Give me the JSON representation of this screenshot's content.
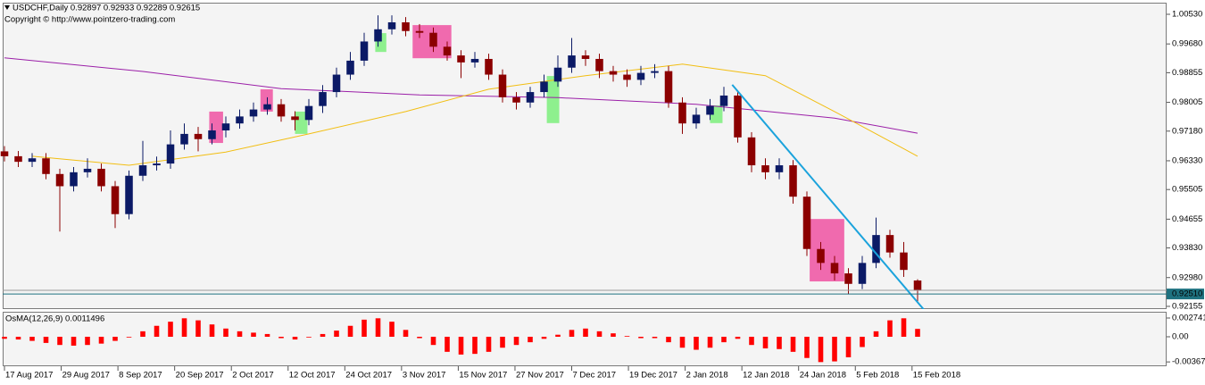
{
  "chart_data": [
    {
      "type": "candlestick",
      "title": "USDCHF,Daily  0.92897 0.92933 0.92289 0.92615",
      "subtitle": "Copyright © http://www.pointzero-trading.com",
      "up_color": "#0b1a66",
      "down_color": "#8b0000",
      "open": [
        0.966,
        0.9646,
        0.963,
        0.964,
        0.9595,
        0.956,
        0.96,
        0.961,
        0.956,
        0.948,
        0.959,
        0.962,
        0.9625,
        0.968,
        0.971,
        0.9695,
        0.972,
        0.974,
        0.976,
        0.978,
        0.9795,
        0.976,
        0.975,
        0.979,
        0.983,
        0.988,
        0.992,
        0.9975,
        1.001,
        1.003,
        1.0005,
        1.0,
        0.996,
        0.9935,
        0.9915,
        0.9925,
        0.988,
        0.9815,
        0.98,
        0.983,
        0.986,
        0.99,
        0.9935,
        0.9925,
        0.989,
        0.988,
        0.9865,
        0.9885,
        0.989,
        0.98,
        0.974,
        0.9765,
        0.979,
        0.982,
        0.97,
        0.962,
        0.96,
        0.962,
        0.953,
        0.938,
        0.934,
        0.931,
        0.928,
        0.934,
        0.942,
        0.937,
        0.92897
      ],
      "high": [
        0.9675,
        0.9661,
        0.9655,
        0.9655,
        0.961,
        0.9615,
        0.964,
        0.9625,
        0.9575,
        0.9605,
        0.969,
        0.9645,
        0.972,
        0.974,
        0.973,
        0.974,
        0.976,
        0.978,
        0.98,
        0.9815,
        0.981,
        0.9775,
        0.981,
        0.985,
        0.99,
        0.9945,
        1.0,
        1.005,
        1.005,
        1.0045,
        1.0025,
        1.0015,
        0.9975,
        0.995,
        0.9945,
        0.994,
        0.9895,
        0.983,
        0.9845,
        0.988,
        0.9935,
        0.9985,
        0.995,
        0.994,
        0.9905,
        0.9895,
        0.9905,
        0.991,
        0.9905,
        0.9815,
        0.9785,
        0.981,
        0.9845,
        0.9835,
        0.9715,
        0.964,
        0.964,
        0.9635,
        0.9545,
        0.94,
        0.936,
        0.9325,
        0.936,
        0.947,
        0.9435,
        0.94,
        0.92933
      ],
      "low": [
        0.9631,
        0.9615,
        0.9615,
        0.958,
        0.943,
        0.9545,
        0.9585,
        0.9545,
        0.944,
        0.9465,
        0.9575,
        0.9605,
        0.961,
        0.9665,
        0.966,
        0.968,
        0.97,
        0.9725,
        0.9745,
        0.9765,
        0.9745,
        0.972,
        0.9735,
        0.977,
        0.9815,
        0.9865,
        0.9905,
        0.996,
        0.9995,
        0.999,
        0.9985,
        0.9945,
        0.992,
        0.987,
        0.99,
        0.9865,
        0.98,
        0.978,
        0.9785,
        0.9815,
        0.9845,
        0.9885,
        0.9905,
        0.987,
        0.986,
        0.9845,
        0.985,
        0.987,
        0.9785,
        0.971,
        0.9725,
        0.975,
        0.9775,
        0.9685,
        0.96,
        0.958,
        0.958,
        0.951,
        0.936,
        0.932,
        0.929,
        0.925,
        0.9265,
        0.9325,
        0.9355,
        0.93,
        0.92289
      ],
      "close": [
        0.9646,
        0.963,
        0.964,
        0.9595,
        0.956,
        0.96,
        0.961,
        0.956,
        0.948,
        0.959,
        0.962,
        0.9625,
        0.968,
        0.971,
        0.9695,
        0.972,
        0.974,
        0.976,
        0.978,
        0.9795,
        0.976,
        0.975,
        0.979,
        0.983,
        0.988,
        0.992,
        0.9975,
        1.001,
        1.003,
        1.0005,
        1.0,
        0.996,
        0.9935,
        0.9915,
        0.9925,
        0.988,
        0.9815,
        0.98,
        0.983,
        0.986,
        0.99,
        0.9935,
        0.9925,
        0.989,
        0.988,
        0.9865,
        0.9885,
        0.989,
        0.98,
        0.974,
        0.9765,
        0.979,
        0.982,
        0.97,
        0.962,
        0.96,
        0.962,
        0.953,
        0.938,
        0.934,
        0.931,
        0.928,
        0.934,
        0.942,
        0.937,
        0.932,
        0.92615
      ],
      "xlim": [
        -0.13,
        84
      ],
      "ylim": [
        0.92077,
        1.00863
      ],
      "yticks": [
        {
          "value": 1.0053,
          "label": "1.00530"
        },
        {
          "value": 0.9968,
          "label": "0.99680"
        },
        0.98855,
        0.98005,
        {
          "value": 0.9718,
          "label": "0.97180"
        },
        {
          "value": 0.9633,
          "label": "0.96330"
        },
        0.95505,
        0.94655,
        {
          "value": 0.9383,
          "label": "0.93830"
        },
        {
          "value": 0.9298,
          "label": "0.92980"
        },
        0.92155
      ],
      "lines": [
        {
          "color": "#9b1fa8",
          "x": [
            0,
            10,
            20,
            30,
            40,
            50,
            60,
            66
          ],
          "values": [
            0.9928,
            0.9889,
            0.984,
            0.9822,
            0.9814,
            0.9795,
            0.9755,
            0.9712
          ]
        },
        {
          "color": "#f2be12",
          "x": [
            2,
            9,
            16,
            22,
            29,
            35,
            42,
            49,
            55,
            60,
            66
          ],
          "values": [
            0.9646,
            0.962,
            0.9658,
            0.971,
            0.9774,
            0.9838,
            0.9877,
            0.991,
            0.9877,
            0.9774,
            0.9646
          ]
        }
      ],
      "trendline": {
        "color": "#1ba3dc",
        "x": [
          52.6,
          66.5
        ],
        "values": [
          0.9851,
          0.9204
        ]
      },
      "zones": [
        {
          "color": "#f06aae",
          "x": [
            14.8,
            15.8
          ],
          "y": [
            0.9774,
            0.9684
          ]
        },
        {
          "color": "#f06aae",
          "x": [
            18.5,
            19.4
          ],
          "y": [
            0.9838,
            0.9774
          ]
        },
        {
          "color": "#8ef08e",
          "x": [
            21,
            21.9
          ],
          "y": [
            0.9774,
            0.971
          ]
        },
        {
          "color": "#8ef08e",
          "x": [
            26.8,
            27.6
          ],
          "y": [
            0.9999,
            0.9945
          ]
        },
        {
          "color": "#f06aae",
          "x": [
            29.5,
            32.3
          ],
          "y": [
            1.0022,
            0.9927
          ]
        },
        {
          "color": "#8ef08e",
          "x": [
            39.2,
            40.1
          ],
          "y": [
            0.9876,
            0.9741
          ]
        },
        {
          "color": "#8ef08e",
          "x": [
            51,
            51.9
          ],
          "y": [
            0.9792,
            0.9741
          ]
        },
        {
          "color": "#f06aae",
          "x": [
            58.2,
            60.7
          ],
          "y": [
            0.9466,
            0.9287
          ]
        }
      ],
      "current_price": {
        "value": 0.9251,
        "label": "0.92510",
        "color": "#1f7280"
      }
    },
    {
      "type": "bar",
      "title": "OsMA(12,26,9) 0.0011496",
      "color": "#ff0000",
      "values": [
        -0.0003,
        -0.0004,
        -0.0006,
        -0.0009,
        -0.0012,
        -0.0013,
        -0.0012,
        -0.001,
        -0.0006,
        -0.0001,
        0.0008,
        0.0016,
        0.0022,
        0.0027,
        0.0024,
        0.0018,
        0.0012,
        0.0008,
        0.0006,
        0.0004,
        -0.0002,
        -0.0004,
        -0.0001,
        0.0004,
        0.0009,
        0.0016,
        0.0025,
        0.0027,
        0.0022,
        0.001,
        -0.0002,
        -0.0012,
        -0.0022,
        -0.0026,
        -0.0025,
        -0.0022,
        -0.0016,
        -0.0012,
        -0.0008,
        -0.0003,
        0.0003,
        0.001,
        0.0012,
        0.0008,
        0.0005,
        0.0001,
        -0.0002,
        -0.0002,
        -0.0008,
        -0.0016,
        -0.0019,
        -0.0016,
        -0.0008,
        -0.0003,
        -0.0012,
        -0.0017,
        -0.0018,
        -0.0022,
        -0.0031,
        -0.0037,
        -0.0036,
        -0.003,
        -0.0015,
        0.0008,
        0.0024,
        0.0027,
        0.0011496
      ],
      "xlim": [
        -0.13,
        84
      ],
      "ylim": [
        -0.004308,
        0.003655
      ],
      "yticks": [
        0.002741,
        {
          "value": 0,
          "label": "0.00"
        },
        -0.003675
      ],
      "xticks": [
        {
          "value": 0,
          "label": "17 Aug 2017"
        },
        {
          "value": 4.1,
          "label": "29 Aug 2017"
        },
        {
          "value": 8.2,
          "label": "8 Sep 2017"
        },
        {
          "value": 12.3,
          "label": "20 Sep 2017"
        },
        {
          "value": 16.4,
          "label": "2 Oct 2017"
        },
        {
          "value": 20.5,
          "label": "12 Oct 2017"
        },
        {
          "value": 24.6,
          "label": "24 Oct 2017"
        },
        {
          "value": 28.7,
          "label": "3 Nov 2017"
        },
        {
          "value": 32.8,
          "label": "15 Nov 2017"
        },
        {
          "value": 36.9,
          "label": "27 Nov 2017"
        },
        {
          "value": 41,
          "label": "7 Dec 2017"
        },
        {
          "value": 45.1,
          "label": "19 Dec 2017"
        },
        {
          "value": 49.2,
          "label": "2 Jan 2018"
        },
        {
          "value": 53.3,
          "label": "12 Jan 2018"
        },
        {
          "value": 57.4,
          "label": "24 Jan 2018"
        },
        {
          "value": 61.5,
          "label": "5 Feb 2018"
        },
        {
          "value": 65.6,
          "label": "15 Feb 2018"
        }
      ]
    }
  ]
}
